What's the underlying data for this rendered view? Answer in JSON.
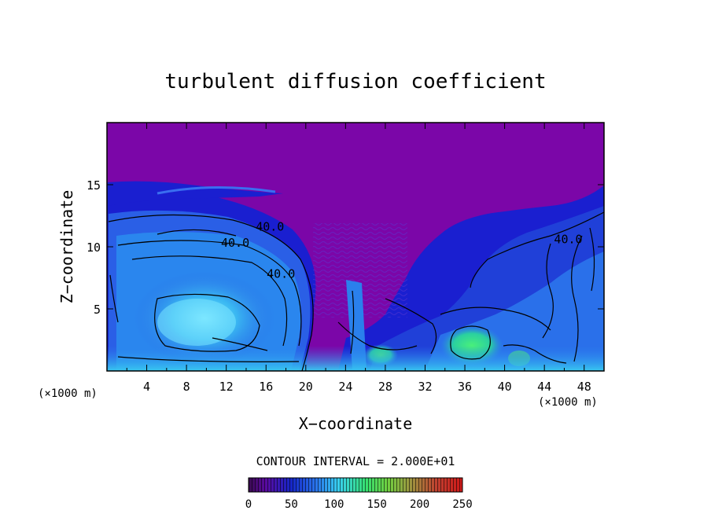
{
  "chart_data": {
    "type": "heatmap",
    "title": "turbulent diffusion coefficient",
    "xlabel": "X−coordinate",
    "ylabel": "Z−coordinate",
    "x_unit_left": "(×1000 m)",
    "x_unit_right": "(×1000 m)",
    "xlim": [
      0,
      50
    ],
    "ylim": [
      0,
      20
    ],
    "xticks": [
      4,
      8,
      12,
      16,
      20,
      24,
      28,
      32,
      36,
      40,
      44,
      48
    ],
    "yticks": [
      5,
      10,
      15
    ],
    "contour_interval_text": "CONTOUR INTERVAL = 2.000E+01",
    "contour_labels": [
      {
        "text": "40.0",
        "x": 16.4,
        "z": 11.3
      },
      {
        "text": "40.0",
        "x": 12.9,
        "z": 10.0
      },
      {
        "text": "40.0",
        "x": 17.5,
        "z": 7.5
      },
      {
        "text": "40.0",
        "x": 46.4,
        "z": 10.3
      }
    ],
    "colorbar": {
      "min": 0,
      "max": 250,
      "ticks": [
        0,
        50,
        100,
        150,
        200,
        250
      ]
    },
    "colors": {
      "background_purple": "#7b06a8",
      "low_blue": "#1a2ad8",
      "mid_blue": "#2b8cf0",
      "cyan": "#40d8f0",
      "green": "#36e09a",
      "red": "#d02020"
    }
  }
}
